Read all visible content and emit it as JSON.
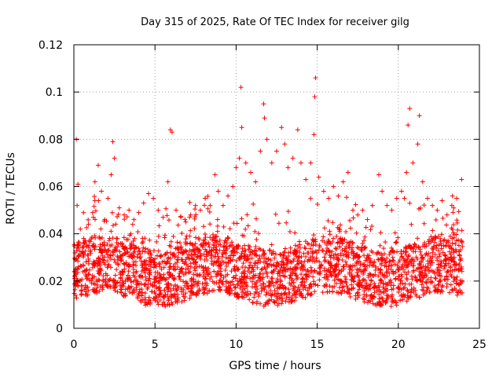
{
  "chart_data": {
    "type": "scatter",
    "title": "Day 315 of 2025, Rate Of TEC Index for receiver gilg",
    "xlabel": "GPS time / hours",
    "ylabel": "ROTI / TECUs",
    "xlim": [
      0,
      25
    ],
    "ylim": [
      0,
      0.12
    ],
    "xticks": [
      0,
      5,
      10,
      15,
      20,
      25
    ],
    "xtick_labels": [
      "0",
      "5",
      "10",
      "15",
      "20",
      "25"
    ],
    "yticks": [
      0,
      0.02,
      0.04,
      0.06,
      0.08,
      0.1,
      0.12
    ],
    "ytick_labels": [
      "0",
      "0.02",
      "0.04",
      "0.06",
      "0.08",
      "0.1",
      "0.12"
    ],
    "grid": true,
    "marker": "+",
    "color": "#ff0000",
    "series": [
      {
        "name": "ROTI",
        "points": [
          [
            0.1,
            0.025
          ],
          [
            0.15,
            0.08
          ],
          [
            0.2,
            0.052
          ],
          [
            0.25,
            0.061
          ],
          [
            0.3,
            0.035
          ],
          [
            0.4,
            0.042
          ],
          [
            0.6,
            0.038
          ],
          [
            0.9,
            0.044
          ],
          [
            1.2,
            0.047
          ],
          [
            1.3,
            0.062
          ],
          [
            1.5,
            0.069
          ],
          [
            1.7,
            0.058
          ],
          [
            1.9,
            0.046
          ],
          [
            2.1,
            0.055
          ],
          [
            2.3,
            0.065
          ],
          [
            2.4,
            0.079
          ],
          [
            2.5,
            0.072
          ],
          [
            2.8,
            0.051
          ],
          [
            3.1,
            0.048
          ],
          [
            3.4,
            0.05
          ],
          [
            3.7,
            0.046
          ],
          [
            4.0,
            0.049
          ],
          [
            4.3,
            0.053
          ],
          [
            4.6,
            0.057
          ],
          [
            4.9,
            0.055
          ],
          [
            5.2,
            0.05
          ],
          [
            5.5,
            0.047
          ],
          [
            5.8,
            0.062
          ],
          [
            5.95,
            0.084
          ],
          [
            6.05,
            0.083
          ],
          [
            6.3,
            0.05
          ],
          [
            6.6,
            0.047
          ],
          [
            6.9,
            0.045
          ],
          [
            7.2,
            0.048
          ],
          [
            7.5,
            0.052
          ],
          [
            7.8,
            0.05
          ],
          [
            8.1,
            0.055
          ],
          [
            8.4,
            0.052
          ],
          [
            8.7,
            0.065
          ],
          [
            8.9,
            0.058
          ],
          [
            9.2,
            0.052
          ],
          [
            9.5,
            0.056
          ],
          [
            9.8,
            0.06
          ],
          [
            10.0,
            0.068
          ],
          [
            10.2,
            0.072
          ],
          [
            10.3,
            0.102
          ],
          [
            10.35,
            0.085
          ],
          [
            10.6,
            0.07
          ],
          [
            10.9,
            0.066
          ],
          [
            11.2,
            0.062
          ],
          [
            11.5,
            0.075
          ],
          [
            11.7,
            0.095
          ],
          [
            11.75,
            0.089
          ],
          [
            11.9,
            0.08
          ],
          [
            12.2,
            0.07
          ],
          [
            12.5,
            0.075
          ],
          [
            12.8,
            0.085
          ],
          [
            13.0,
            0.078
          ],
          [
            13.2,
            0.068
          ],
          [
            13.5,
            0.072
          ],
          [
            13.8,
            0.084
          ],
          [
            14.0,
            0.07
          ],
          [
            14.3,
            0.063
          ],
          [
            14.6,
            0.07
          ],
          [
            14.8,
            0.082
          ],
          [
            14.85,
            0.098
          ],
          [
            14.9,
            0.106
          ],
          [
            15.1,
            0.064
          ],
          [
            15.4,
            0.058
          ],
          [
            15.7,
            0.055
          ],
          [
            16.0,
            0.06
          ],
          [
            16.3,
            0.056
          ],
          [
            16.6,
            0.062
          ],
          [
            16.9,
            0.066
          ],
          [
            17.2,
            0.05
          ],
          [
            17.5,
            0.048
          ],
          [
            17.8,
            0.05
          ],
          [
            18.1,
            0.046
          ],
          [
            18.4,
            0.052
          ],
          [
            18.8,
            0.065
          ],
          [
            19.0,
            0.058
          ],
          [
            19.3,
            0.052
          ],
          [
            19.6,
            0.05
          ],
          [
            19.9,
            0.055
          ],
          [
            20.2,
            0.058
          ],
          [
            20.5,
            0.066
          ],
          [
            20.6,
            0.086
          ],
          [
            20.7,
            0.093
          ],
          [
            20.9,
            0.07
          ],
          [
            21.2,
            0.078
          ],
          [
            21.3,
            0.09
          ],
          [
            21.5,
            0.062
          ],
          [
            21.8,
            0.055
          ],
          [
            22.1,
            0.052
          ],
          [
            22.4,
            0.05
          ],
          [
            22.7,
            0.054
          ],
          [
            23.0,
            0.048
          ],
          [
            23.3,
            0.052
          ],
          [
            23.6,
            0.055
          ],
          [
            23.9,
            0.063
          ]
        ]
      }
    ]
  }
}
